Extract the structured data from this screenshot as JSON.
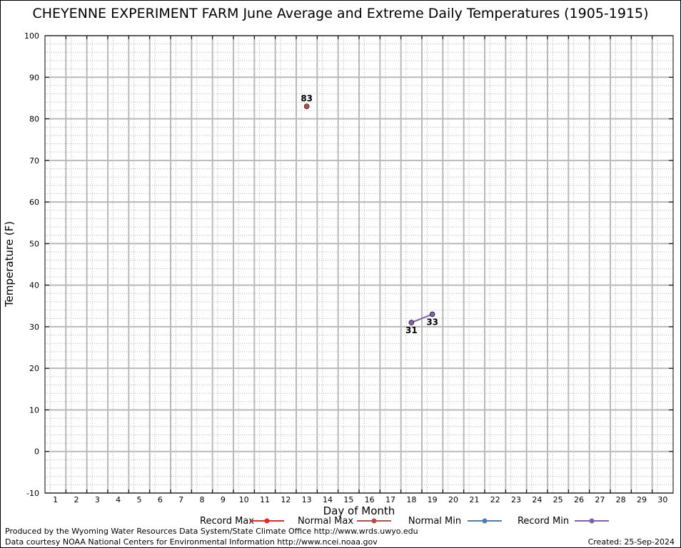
{
  "chart_data": {
    "type": "line",
    "title": "CHEYENNE EXPERIMENT FARM June Average and Extreme Daily Temperatures (1905-1915)",
    "xlabel": "Day of Month",
    "ylabel": "Temperature (F)",
    "categories": [
      "1",
      "2",
      "3",
      "4",
      "5",
      "6",
      "7",
      "8",
      "9",
      "10",
      "11",
      "12",
      "13",
      "14",
      "15",
      "16",
      "17",
      "18",
      "19",
      "20",
      "21",
      "22",
      "23",
      "24",
      "25",
      "26",
      "27",
      "28",
      "29",
      "30"
    ],
    "ylim": [
      -10,
      100
    ],
    "yticks": [
      "-10",
      "0",
      "10",
      "20",
      "30",
      "40",
      "50",
      "60",
      "70",
      "80",
      "90",
      "100"
    ],
    "grid": true,
    "series": [
      {
        "name": "Record Max",
        "color": "#e8281e",
        "points": []
      },
      {
        "name": "Normal Max",
        "color": "#b84a4a",
        "points": [
          {
            "x": 13,
            "y": 83,
            "label": "83"
          }
        ]
      },
      {
        "name": "Normal Min",
        "color": "#4a7fb0",
        "points": []
      },
      {
        "name": "Record Min",
        "color": "#8060a8",
        "points": [
          {
            "x": 18,
            "y": 31,
            "label": "31"
          },
          {
            "x": 19,
            "y": 33,
            "label": "33"
          }
        ]
      }
    ],
    "legend_position": "bottom"
  },
  "footer": {
    "produced": "Produced by the Wyoming Water Resources Data System/State Climate Office http://www.wrds.uwyo.edu",
    "data_courtesy": "Data courtesy NOAA National Centers for Environmental Information http://www.ncei.noaa.gov",
    "created": "Created:  25-Sep-2024"
  }
}
